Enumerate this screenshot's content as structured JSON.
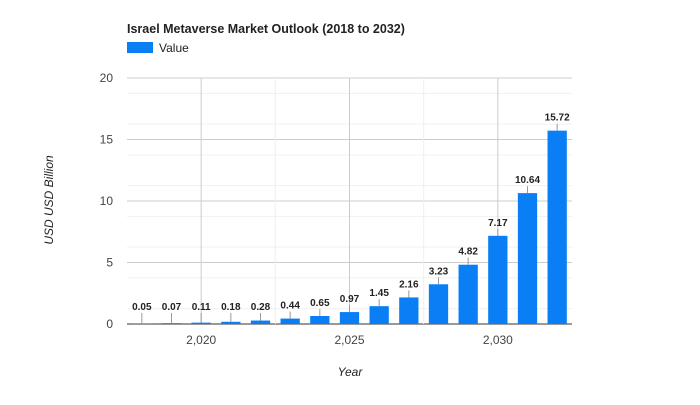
{
  "chart_data": {
    "type": "bar",
    "title": "Israel Metaverse Market Outlook (2018 to 2032)",
    "xlabel": "Year",
    "ylabel": "USD USD Billion",
    "legend": {
      "position": "top-left",
      "entries": [
        "Value"
      ]
    },
    "x": [
      2018,
      2019,
      2020,
      2021,
      2022,
      2023,
      2024,
      2025,
      2026,
      2027,
      2028,
      2029,
      2030,
      2031,
      2032
    ],
    "x_ticks": [
      "2,020",
      "2,025",
      "2,030"
    ],
    "x_tick_values": [
      2020,
      2025,
      2030
    ],
    "xlim": [
      2017.5,
      2032.5
    ],
    "ylim": [
      0,
      20
    ],
    "y_ticks": [
      "0",
      "5",
      "10",
      "15",
      "20"
    ],
    "y_tick_values": [
      0,
      5,
      10,
      15,
      20
    ],
    "grid": true,
    "series": [
      {
        "name": "Value",
        "color": "#0a7ef5",
        "values": [
          0.05,
          0.07,
          0.11,
          0.18,
          0.28,
          0.44,
          0.65,
          0.97,
          1.45,
          2.16,
          3.23,
          4.82,
          7.17,
          10.64,
          15.72
        ],
        "labels": [
          "0.05",
          "0.07",
          "0.11",
          "0.18",
          "0.28",
          "0.44",
          "0.65",
          "0.97",
          "1.45",
          "2.16",
          "3.23",
          "4.82",
          "7.17",
          "10.64",
          "15.72"
        ]
      }
    ]
  }
}
